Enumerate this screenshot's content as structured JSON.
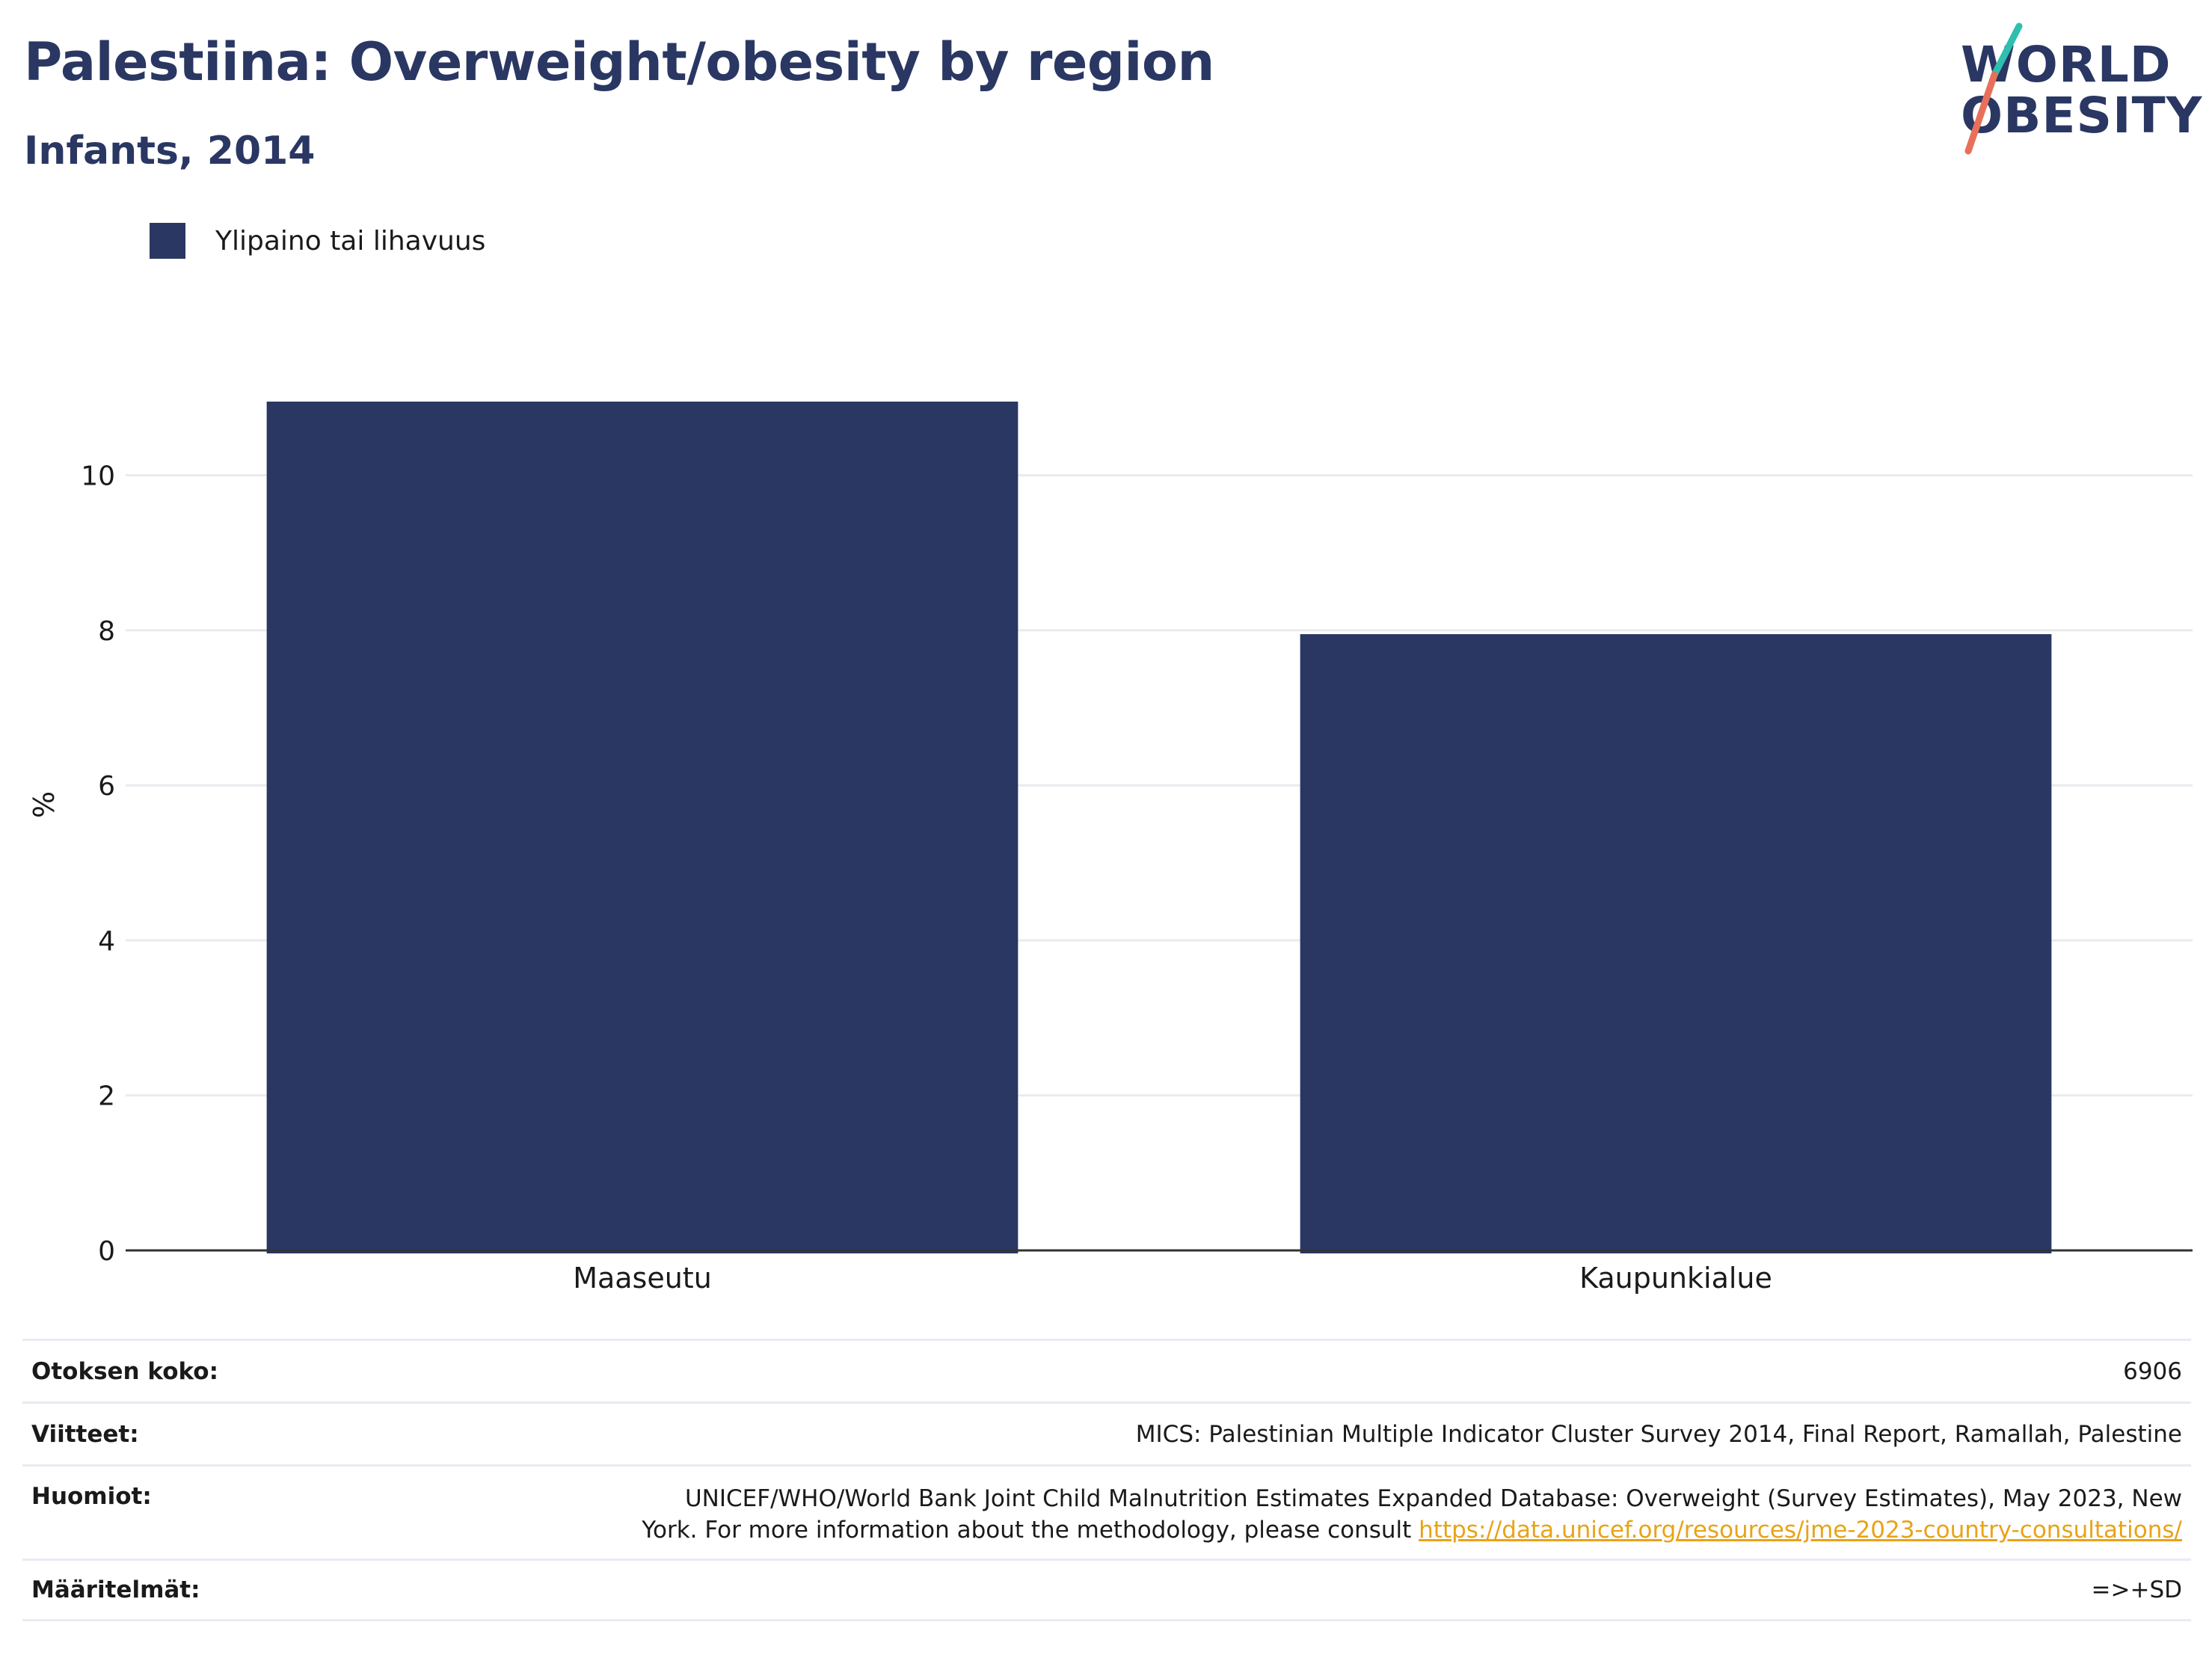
{
  "title": "Palestiina: Overweight/obesity by region",
  "subtitle": "Infants, 2014",
  "logo": {
    "line1": "WORLD",
    "line2": "OBESITY",
    "name": "world-obesity-logo"
  },
  "legend": {
    "label": "Ylipaino tai lihavuus",
    "color": "#2a3763"
  },
  "chart_data": {
    "type": "bar",
    "categories": [
      "Maaseutu",
      "Kaupunkialue"
    ],
    "series": [
      {
        "name": "Ylipaino tai lihavuus",
        "values": [
          10.95,
          7.95
        ],
        "color": "#2a3763"
      }
    ],
    "ylabel": "%",
    "xlabel": "",
    "ylim": [
      0,
      11.5
    ],
    "yticks": [
      0,
      2,
      4,
      6,
      8,
      10
    ],
    "grid": true,
    "legend_position": "top-left"
  },
  "info": {
    "sample_size": {
      "label": "Otoksen koko:",
      "value": "6906"
    },
    "references": {
      "label": "Viitteet:",
      "value": "MICS: Palestinian Multiple Indicator Cluster Survey 2014, Final Report, Ramallah, Palestine"
    },
    "notes": {
      "label": "Huomiot:",
      "line1": "UNICEF/WHO/World Bank Joint Child Malnutrition Estimates Expanded Database: Overweight (Survey Estimates), May 2023, New",
      "line2": "York. For more information about the methodology, please consult",
      "link": "https://data.unicef.org/resources/jme-2023-country-consultations/"
    },
    "definitions": {
      "label": "Määritelmät:",
      "value": "=>+SD"
    }
  }
}
